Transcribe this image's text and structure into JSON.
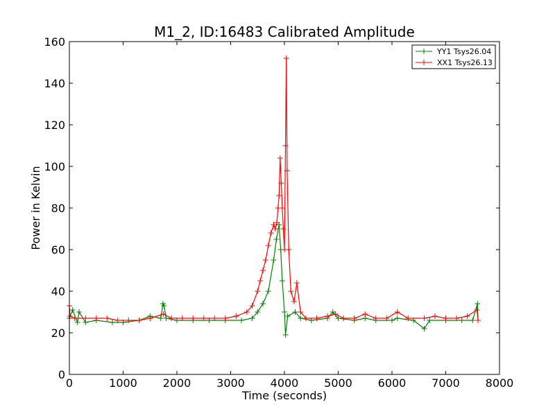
{
  "chart_data": {
    "type": "line",
    "title": "M1_2, ID:16483 Calibrated Amplitude",
    "xlabel": "Time (seconds)",
    "ylabel": "Power in Kelvin",
    "xlim": [
      0,
      8000
    ],
    "ylim": [
      0,
      160
    ],
    "xticks": [
      "0",
      "1000",
      "2000",
      "3000",
      "4000",
      "5000",
      "6000",
      "7000",
      "8000"
    ],
    "yticks": [
      "0",
      "20",
      "40",
      "60",
      "80",
      "100",
      "120",
      "140",
      "160"
    ],
    "grid": false,
    "legend_position": "top-right",
    "marker": "+",
    "series": [
      {
        "name": "YY1 Tsys26.04",
        "color": "#008000",
        "points": [
          [
            0,
            27
          ],
          [
            60,
            31
          ],
          [
            150,
            25
          ],
          [
            180,
            30
          ],
          [
            300,
            25
          ],
          [
            500,
            26
          ],
          [
            800,
            25
          ],
          [
            1000,
            25
          ],
          [
            1300,
            26
          ],
          [
            1500,
            28
          ],
          [
            1700,
            27
          ],
          [
            1740,
            34
          ],
          [
            1760,
            33
          ],
          [
            1800,
            27
          ],
          [
            2000,
            26
          ],
          [
            2300,
            26
          ],
          [
            2600,
            26
          ],
          [
            2900,
            26
          ],
          [
            3200,
            26
          ],
          [
            3400,
            27
          ],
          [
            3500,
            30
          ],
          [
            3600,
            34
          ],
          [
            3700,
            40
          ],
          [
            3800,
            55
          ],
          [
            3850,
            65
          ],
          [
            3900,
            72
          ],
          [
            3930,
            60
          ],
          [
            3960,
            45
          ],
          [
            4000,
            30
          ],
          [
            4020,
            19
          ],
          [
            4060,
            28
          ],
          [
            4200,
            30
          ],
          [
            4300,
            27
          ],
          [
            4500,
            26
          ],
          [
            4800,
            27
          ],
          [
            4900,
            30
          ],
          [
            5000,
            27
          ],
          [
            5300,
            26
          ],
          [
            5500,
            27
          ],
          [
            5700,
            26
          ],
          [
            6000,
            26
          ],
          [
            6100,
            27
          ],
          [
            6400,
            26
          ],
          [
            6600,
            22
          ],
          [
            6700,
            26
          ],
          [
            7000,
            26
          ],
          [
            7300,
            26
          ],
          [
            7500,
            26
          ],
          [
            7590,
            34
          ],
          [
            7600,
            26
          ]
        ]
      },
      {
        "name": "XX1 Tsys26.13",
        "color": "#ff0000",
        "points": [
          [
            0,
            33
          ],
          [
            10,
            28
          ],
          [
            100,
            27
          ],
          [
            300,
            27
          ],
          [
            500,
            27
          ],
          [
            700,
            27
          ],
          [
            900,
            26
          ],
          [
            1100,
            26
          ],
          [
            1300,
            26
          ],
          [
            1500,
            27
          ],
          [
            1750,
            29
          ],
          [
            1900,
            27
          ],
          [
            2100,
            27
          ],
          [
            2300,
            27
          ],
          [
            2500,
            27
          ],
          [
            2700,
            27
          ],
          [
            2900,
            27
          ],
          [
            3100,
            28
          ],
          [
            3300,
            30
          ],
          [
            3400,
            33
          ],
          [
            3500,
            40
          ],
          [
            3550,
            45
          ],
          [
            3600,
            50
          ],
          [
            3650,
            55
          ],
          [
            3700,
            62
          ],
          [
            3750,
            68
          ],
          [
            3800,
            72
          ],
          [
            3830,
            70
          ],
          [
            3860,
            73
          ],
          [
            3880,
            80
          ],
          [
            3900,
            86
          ],
          [
            3920,
            104
          ],
          [
            3940,
            92
          ],
          [
            3960,
            80
          ],
          [
            3980,
            70
          ],
          [
            4000,
            60
          ],
          [
            4020,
            110
          ],
          [
            4035,
            152
          ],
          [
            4050,
            98
          ],
          [
            4080,
            60
          ],
          [
            4120,
            40
          ],
          [
            4180,
            35
          ],
          [
            4230,
            44
          ],
          [
            4300,
            30
          ],
          [
            4400,
            27
          ],
          [
            4600,
            27
          ],
          [
            4800,
            28
          ],
          [
            4950,
            29
          ],
          [
            5100,
            27
          ],
          [
            5300,
            27
          ],
          [
            5500,
            29
          ],
          [
            5700,
            27
          ],
          [
            5900,
            27
          ],
          [
            6100,
            30
          ],
          [
            6300,
            27
          ],
          [
            6600,
            27
          ],
          [
            6800,
            28
          ],
          [
            7000,
            27
          ],
          [
            7200,
            27
          ],
          [
            7400,
            28
          ],
          [
            7580,
            31
          ],
          [
            7600,
            26
          ]
        ]
      }
    ]
  }
}
